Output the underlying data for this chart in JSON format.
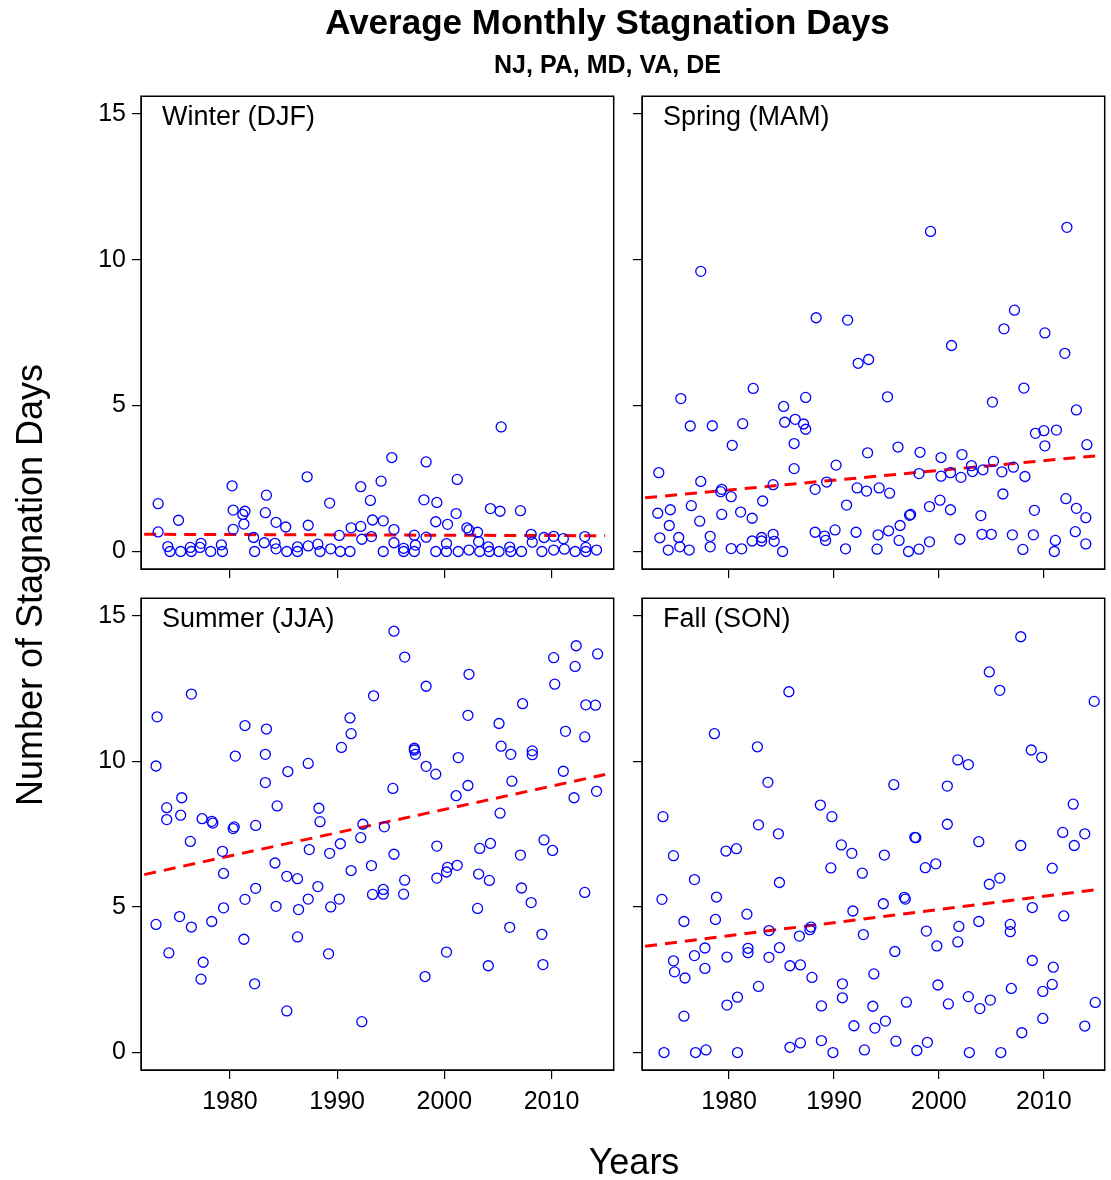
{
  "chart_data": [
    {
      "type": "scatter",
      "title": "Average Monthly Stagnation Days",
      "subtitle": "NJ, PA, MD, VA, DE",
      "xlabel": "Years",
      "ylabel": "Number of Stagnation Days",
      "annotations": [
        "Winter (DJF)"
      ],
      "xlim": [
        1971.7,
        2015.8
      ],
      "ylim": [
        -0.6,
        15.6
      ],
      "xticks": [
        1980,
        1990,
        2000,
        2010
      ],
      "yticks": [
        0,
        5,
        10,
        15
      ],
      "tick_labels": "y",
      "series": [
        {
          "color": "#0000ff",
          "marker": "circle",
          "x": [
            1973.3,
            1973.3,
            1974.2,
            1974.4,
            1975.2,
            1975.4,
            1976.3,
            1976.4,
            1977.3,
            1977.2,
            1978.2,
            1979.2,
            1979.3,
            1980.2,
            1980.3,
            1980.3,
            1981.2,
            1981.4,
            1981.3,
            1982.2,
            1982.3,
            1983.4,
            1983.3,
            1983.2,
            1984.2,
            1984.3,
            1984.3,
            1985.2,
            1985.3,
            1986.3,
            1986.3,
            1987.2,
            1987.3,
            1987.3,
            1988.2,
            1988.4,
            1989.3,
            1989.4,
            1990.2,
            1990.3,
            1991.2,
            1991.3,
            1992.2,
            1992.2,
            1992.3,
            1993.1,
            1993.3,
            1993.2,
            1994.1,
            1994.3,
            1994.3,
            1995.1,
            1995.3,
            1995.3,
            1996.2,
            1996.2,
            1997.2,
            1997.3,
            1997.2,
            1998.3,
            1998.1,
            1998.3,
            1999.2,
            1999.3,
            1999.2,
            2000.2,
            2000.3,
            2000.2,
            2001.2,
            2001.1,
            2001.3,
            2002.1,
            2002.3,
            2002.3,
            2003.1,
            2003.2,
            2003.3,
            2004.3,
            2004.1,
            2004.2,
            2005.3,
            2005.2,
            2005.1,
            2006.1,
            2006.2,
            2007.1,
            2007.2,
            2008.1,
            2008.2,
            2009.3,
            2009.1,
            2010.2,
            2010.2,
            2011.1,
            2011.2,
            2012.2,
            2013.1,
            2013.2,
            2013.2,
            2014.2
          ],
          "values": [
            1.64,
            0.67,
            0.17,
            0,
            1.07,
            0,
            0.14,
            0,
            0.28,
            0.14,
            0,
            0.23,
            0,
            2.25,
            1.42,
            0.76,
            1.27,
            1.38,
            0.94,
            0.48,
            0,
            1.93,
            1.33,
            0.3,
            0.28,
            1,
            0.09,
            0.84,
            0,
            0.16,
            0,
            2.56,
            0.9,
            0.19,
            0.25,
            0,
            1.66,
            0.09,
            0.55,
            0,
            0,
            0.81,
            0.86,
            2.22,
            0.42,
            1.75,
            1.08,
            0.51,
            2.41,
            1.05,
            0,
            3.22,
            0.75,
            0.3,
            0.11,
            0,
            0.56,
            0.22,
            0,
            3.07,
            1.77,
            0.49,
            1.02,
            1.68,
            0,
            0.27,
            0.93,
            0,
            2.47,
            1.3,
            0,
            0.81,
            0.74,
            0.05,
            0.66,
            0.34,
            0,
            1.47,
            0.16,
            0,
            4.27,
            1.38,
            0,
            0.15,
            0,
            1.4,
            0,
            0.59,
            0.32,
            0.48,
            0,
            0.52,
            0.05,
            0.44,
            0.08,
            0,
            0.51,
            0.14,
            0,
            0.05
          ]
        },
        {
          "type": "line",
          "color": "#ff0000",
          "marker": "none",
          "line_style": "dashed",
          "x": [
            1972,
            2015
          ],
          "values": [
            0.59,
            0.54
          ]
        }
      ]
    },
    {
      "type": "scatter",
      "annotations": [
        "Spring (MAM)"
      ],
      "xlim": [
        1971.7,
        2015.8
      ],
      "ylim": [
        -0.6,
        15.6
      ],
      "xticks": [
        1980,
        1990,
        2000,
        2010
      ],
      "yticks": [
        0,
        5,
        10,
        15
      ],
      "tick_labels": false,
      "series": [
        {
          "color": "#0000ff",
          "marker": "circle",
          "x": [
            1973.3,
            1973.2,
            1973.4,
            1974.2,
            1974.4,
            1974.3,
            1975.2,
            1975.3,
            1975.4,
            1976.3,
            1976.4,
            1976.2,
            1977.3,
            1977.3,
            1977.2,
            1978.2,
            1978.2,
            1978.4,
            1979.2,
            1979.3,
            1979.3,
            1980.3,
            1980.2,
            1980.2,
            1981.3,
            1981.1,
            1981.2,
            1982.3,
            1982.2,
            1982.2,
            1983.1,
            1983.1,
            1983.2,
            1984.2,
            1984.2,
            1984.3,
            1985.1,
            1985.2,
            1985.3,
            1986.2,
            1986.2,
            1986.3,
            1987.1,
            1987.3,
            1987.3,
            1988.3,
            1988.2,
            1988.2,
            1989.1,
            1989.2,
            1989.3,
            1990.2,
            1990.1,
            1991.1,
            1991.2,
            1991.3,
            1992.1,
            1992.2,
            1992.3,
            1993.1,
            1993.2,
            1993.3,
            1994.1,
            1994.2,
            1994.3,
            1995.1,
            1995.2,
            1995.3,
            1996.1,
            1996.2,
            1996.3,
            1997.1,
            1997.2,
            1997.3,
            1998.1,
            1998.1,
            1998.2,
            1999.1,
            1999.1,
            1999.2,
            2000.1,
            2000.2,
            2000.2,
            2001.1,
            2001.1,
            2001.2,
            2002.0,
            2002.1,
            2002.2,
            2003.1,
            2003.2,
            2004.0,
            2004.1,
            2004.2,
            2005.0,
            2005.1,
            2005.2,
            2006.0,
            2006.1,
            2006.2,
            2007.0,
            2007.1,
            2007.2,
            2008.0,
            2008.1,
            2008.2,
            2009.0,
            2009.1,
            2009.2,
            2010.0,
            2010.1,
            2010.1,
            2011.0,
            2011.1,
            2011.2,
            2012.0,
            2012.1,
            2012.2,
            2013.0,
            2013.1,
            2013.1,
            2014.0,
            2014.0,
            2014.1
          ],
          "values": [
            2.7,
            1.31,
            0.47,
            0.05,
            1.43,
            0.89,
            0.48,
            0.16,
            5.24,
            4.3,
            1.57,
            0.05,
            9.6,
            2.4,
            1.04,
            0.52,
            0.16,
            4.31,
            2.05,
            2.13,
            1.27,
            3.64,
            1.88,
            0.1,
            4.38,
            1.35,
            0.09,
            5.59,
            1.14,
            0.36,
            0.48,
            0.36,
            1.73,
            2.29,
            0.59,
            0.35,
            0,
            4.97,
            4.43,
            2.84,
            3.7,
            4.53,
            4.37,
            4.19,
            5.28,
            8.01,
            2.13,
            0.66,
            0.53,
            0.38,
            2.38,
            2.96,
            0.74,
            0.09,
            1.59,
            7.93,
            0.66,
            2.18,
            6.45,
            2.07,
            3.38,
            6.58,
            0.08,
            0.57,
            2.18,
            5.3,
            0.71,
            2,
            3.58,
            0.38,
            0.89,
            0,
            1.24,
            1.27,
            0.08,
            2.67,
            3.4,
            0.33,
            1.54,
            10.97,
            1.76,
            2.58,
            3.22,
            1.43,
            2.7,
            7.06,
            0.42,
            2.54,
            3.32,
            2.94,
            2.74,
            1.23,
            0.59,
            2.8,
            0.59,
            5.12,
            3.09,
            2.73,
            1.97,
            7.63,
            0.57,
            2.89,
            8.27,
            0.07,
            5.6,
            2.57,
            0.57,
            1.41,
            4.05,
            4.14,
            3.62,
            7.49,
            0,
            0.38,
            4.16,
            6.79,
            1.81,
            11.11,
            0.68,
            1.48,
            4.85,
            0.26,
            1.16,
            3.66
          ]
        },
        {
          "type": "line",
          "color": "#ff0000",
          "marker": "none",
          "line_style": "dashed",
          "x": [
            1972,
            2015
          ],
          "values": [
            1.84,
            3.28
          ]
        }
      ]
    },
    {
      "type": "scatter",
      "annotations": [
        "Summer (JJA)"
      ],
      "xlim": [
        1971.7,
        2015.8
      ],
      "ylim": [
        -0.6,
        15.6
      ],
      "xticks": [
        1980,
        1990,
        2000,
        2010
      ],
      "yticks": [
        0,
        5,
        10,
        15
      ],
      "series": [
        {
          "color": "#0000ff",
          "marker": "circle",
          "x": [
            1973.2,
            1973.1,
            1973.1,
            1974.1,
            1974.1,
            1974.3,
            1975.5,
            1975.4,
            1975.3,
            1976.4,
            1976.3,
            1976.4,
            1977.4,
            1977.5,
            1977.3,
            1978.3,
            1978.4,
            1978.3,
            1979.3,
            1979.4,
            1979.4,
            1980.5,
            1980.3,
            1980.4,
            1981.4,
            1981.4,
            1981.3,
            1982.4,
            1982.4,
            1982.3,
            1983.4,
            1983.3,
            1983.3,
            1984.4,
            1984.2,
            1984.3,
            1985.3,
            1985.3,
            1985.4,
            1986.3,
            1986.4,
            1986.3,
            1987.3,
            1987.3,
            1987.4,
            1988.3,
            1988.4,
            1988.2,
            1989.3,
            1989.4,
            1989.2,
            1990.4,
            1990.3,
            1990.2,
            1991.2,
            1991.3,
            1991.3,
            1992.3,
            1992.4,
            1992.2,
            1993.4,
            1993.2,
            1993.3,
            1994.3,
            1994.3,
            1994.4,
            1995.3,
            1995.2,
            1995.3,
            1996.3,
            1996.3,
            1996.2,
            1997.2,
            1997.2,
            1997.3,
            1998.3,
            1998.3,
            1998.2,
            1999.2,
            1999.3,
            1999.3,
            2000.2,
            2000.2,
            2000.3,
            2001.2,
            2001.3,
            2001.1,
            2002.3,
            2002.2,
            2002.2,
            2003.1,
            2003.2,
            2003.3,
            2004.3,
            2004.2,
            2004.1,
            2005.1,
            2005.3,
            2005.2,
            2006.2,
            2006.3,
            2006.1,
            2007.3,
            2007.1,
            2007.2,
            2008.2,
            2008.2,
            2008.1,
            2009.3,
            2009.1,
            2009.2,
            2010.1,
            2010.2,
            2010.3,
            2011.1,
            2011.3,
            2012.1,
            2012.2,
            2012.3,
            2013.1,
            2013.2,
            2013.1,
            2014.1,
            2014.2,
            2014.3
          ],
          "values": [
            11.53,
            9.84,
            4.4,
            8.41,
            8,
            3.42,
            8.75,
            8.15,
            4.67,
            12.31,
            7.25,
            4.31,
            8.03,
            3.1,
            2.52,
            7.94,
            7.88,
            4.5,
            6.91,
            6.15,
            4.97,
            10.18,
            7.69,
            7.75,
            11.23,
            5.26,
            3.89,
            7.8,
            5.64,
            2.36,
            11.11,
            10.24,
            9.27,
            8.47,
            6.51,
            5.02,
            1.43,
            6.05,
            9.65,
            5.97,
            4.91,
            3.97,
            9.93,
            5.27,
            6.97,
            8.39,
            7.93,
            5.7,
            6.84,
            5,
            3.39,
            10.48,
            7.17,
            5.27,
            11.49,
            10.95,
            6.25,
            1.06,
            7.84,
            7.38,
            12.25,
            6.42,
            5.43,
            5.6,
            5.44,
            7.75,
            14.47,
            9.07,
            6.81,
            13.58,
            5.92,
            5.44,
            10.45,
            10.39,
            10.24,
            12.58,
            9.83,
            2.61,
            9.56,
            7.09,
            5.99,
            3.45,
            6.2,
            6.36,
            6.43,
            10.13,
            8.82,
            12.99,
            11.58,
            9.17,
            4.95,
            6.13,
            7.01,
            7.18,
            5.91,
            2.98,
            11.3,
            10.52,
            8.22,
            10.24,
            9.32,
            4.3,
            11.98,
            6.78,
            5.65,
            10.36,
            10.23,
            5.15,
            7.3,
            4.06,
            3.02,
            6.94,
            13.56,
            12.65,
            9.66,
            11.03,
            8.75,
            13.26,
            13.97,
            10.84,
            11.94,
            5.5,
            11.93,
            8.97,
            13.69
          ]
        },
        {
          "type": "line",
          "color": "#ff0000",
          "marker": "none",
          "line_style": "dashed",
          "x": [
            1972,
            2015
          ],
          "values": [
            6.11,
            9.55
          ]
        }
      ]
    },
    {
      "type": "scatter",
      "annotations": [
        "Fall (SON)"
      ],
      "xlim": [
        1971.7,
        2015.8
      ],
      "ylim": [
        -0.6,
        15.6
      ],
      "xticks": [
        1980,
        1990,
        2000,
        2010
      ],
      "yticks": [
        0,
        5,
        10,
        15
      ],
      "tick_labels": "x",
      "series": [
        {
          "color": "#0000ff",
          "marker": "circle",
          "x": [
            1973.7,
            1973.6,
            1973.8,
            1974.7,
            1974.7,
            1974.8,
            1975.7,
            1975.8,
            1975.7,
            1976.7,
            1976.7,
            1976.8,
            1977.7,
            1977.7,
            1977.8,
            1978.6,
            1978.8,
            1978.7,
            1979.7,
            1979.8,
            1979.8,
            1980.7,
            1980.8,
            1980.8,
            1981.7,
            1981.8,
            1981.8,
            1982.7,
            1982.8,
            1982.8,
            1983.7,
            1983.8,
            1983.8,
            1984.7,
            1984.8,
            1984.8,
            1985.7,
            1985.8,
            1985.8,
            1986.7,
            1986.8,
            1986.8,
            1987.7,
            1987.8,
            1987.9,
            1988.7,
            1988.8,
            1988.8,
            1989.7,
            1989.8,
            1989.9,
            1990.7,
            1990.8,
            1990.8,
            1991.7,
            1991.8,
            1991.9,
            1992.7,
            1992.8,
            1992.9,
            1993.7,
            1993.8,
            1993.9,
            1994.7,
            1994.8,
            1994.9,
            1995.7,
            1995.8,
            1995.9,
            1996.7,
            1996.8,
            1996.9,
            1997.7,
            1997.8,
            1997.9,
            1998.7,
            1998.8,
            1998.9,
            1999.7,
            1999.8,
            1999.9,
            2000.8,
            2000.8,
            2000.9,
            2001.8,
            2001.8,
            2001.9,
            2002.8,
            2002.8,
            2002.9,
            2003.8,
            2003.8,
            2003.9,
            2004.8,
            2004.8,
            2004.9,
            2005.8,
            2005.8,
            2005.9,
            2006.8,
            2006.8,
            2006.9,
            2007.8,
            2007.8,
            2007.9,
            2008.8,
            2008.9,
            2008.9,
            2009.8,
            2009.9,
            2009.9,
            2010.8,
            2010.8,
            2010.9,
            2011.8,
            2011.9,
            2012.8,
            2012.9,
            2013.9,
            2013.9,
            2014.8,
            2014.9
          ],
          "values": [
            8.1,
            5.26,
            0,
            6.76,
            3.15,
            2.77,
            4.5,
            2.56,
            1.25,
            5.94,
            3.33,
            0,
            3.59,
            2.89,
            0.09,
            10.95,
            5.34,
            4.57,
            6.92,
            3.28,
            1.63,
            7,
            1.9,
            0,
            4.75,
            3.43,
            3.58,
            10.5,
            7.82,
            2.27,
            9.28,
            4.19,
            3.27,
            7.51,
            5.84,
            3.6,
            12.39,
            2.98,
            0.18,
            4,
            3.01,
            0.33,
            4.22,
            4.31,
            2.58,
            8.5,
            1.6,
            0.41,
            6.34,
            8.1,
            0,
            7.13,
            1.88,
            2.36,
            6.84,
            4.86,
            0.92,
            6.16,
            4.05,
            0.09,
            1.59,
            2.7,
            0.84,
            5.11,
            6.78,
            1.08,
            9.2,
            3.47,
            0.39,
            5.33,
            5.27,
            1.73,
            7.39,
            7.38,
            0.07,
            6.35,
            4.17,
            0.35,
            6.48,
            3.66,
            2.32,
            7.84,
            9.15,
            1.67,
            10.05,
            3.8,
            4.33,
            9.89,
            1.92,
            0,
            7.24,
            4.5,
            1.51,
            13.07,
            5.78,
            1.8,
            12.44,
            5.99,
            0,
            4.4,
            4.15,
            2.2,
            14.28,
            7.11,
            0.68,
            10.39,
            4.98,
            3.16,
            10.14,
            1.17,
            2.1,
            6.33,
            2.34,
            2.93,
            7.56,
            4.69,
            8.53,
            7.11,
            7.51,
            0.91,
            12.06,
            1.72
          ]
        },
        {
          "type": "line",
          "color": "#ff0000",
          "marker": "none",
          "line_style": "dashed",
          "x": [
            1972,
            2015
          ],
          "values": [
            3.65,
            5.59
          ]
        }
      ]
    }
  ]
}
